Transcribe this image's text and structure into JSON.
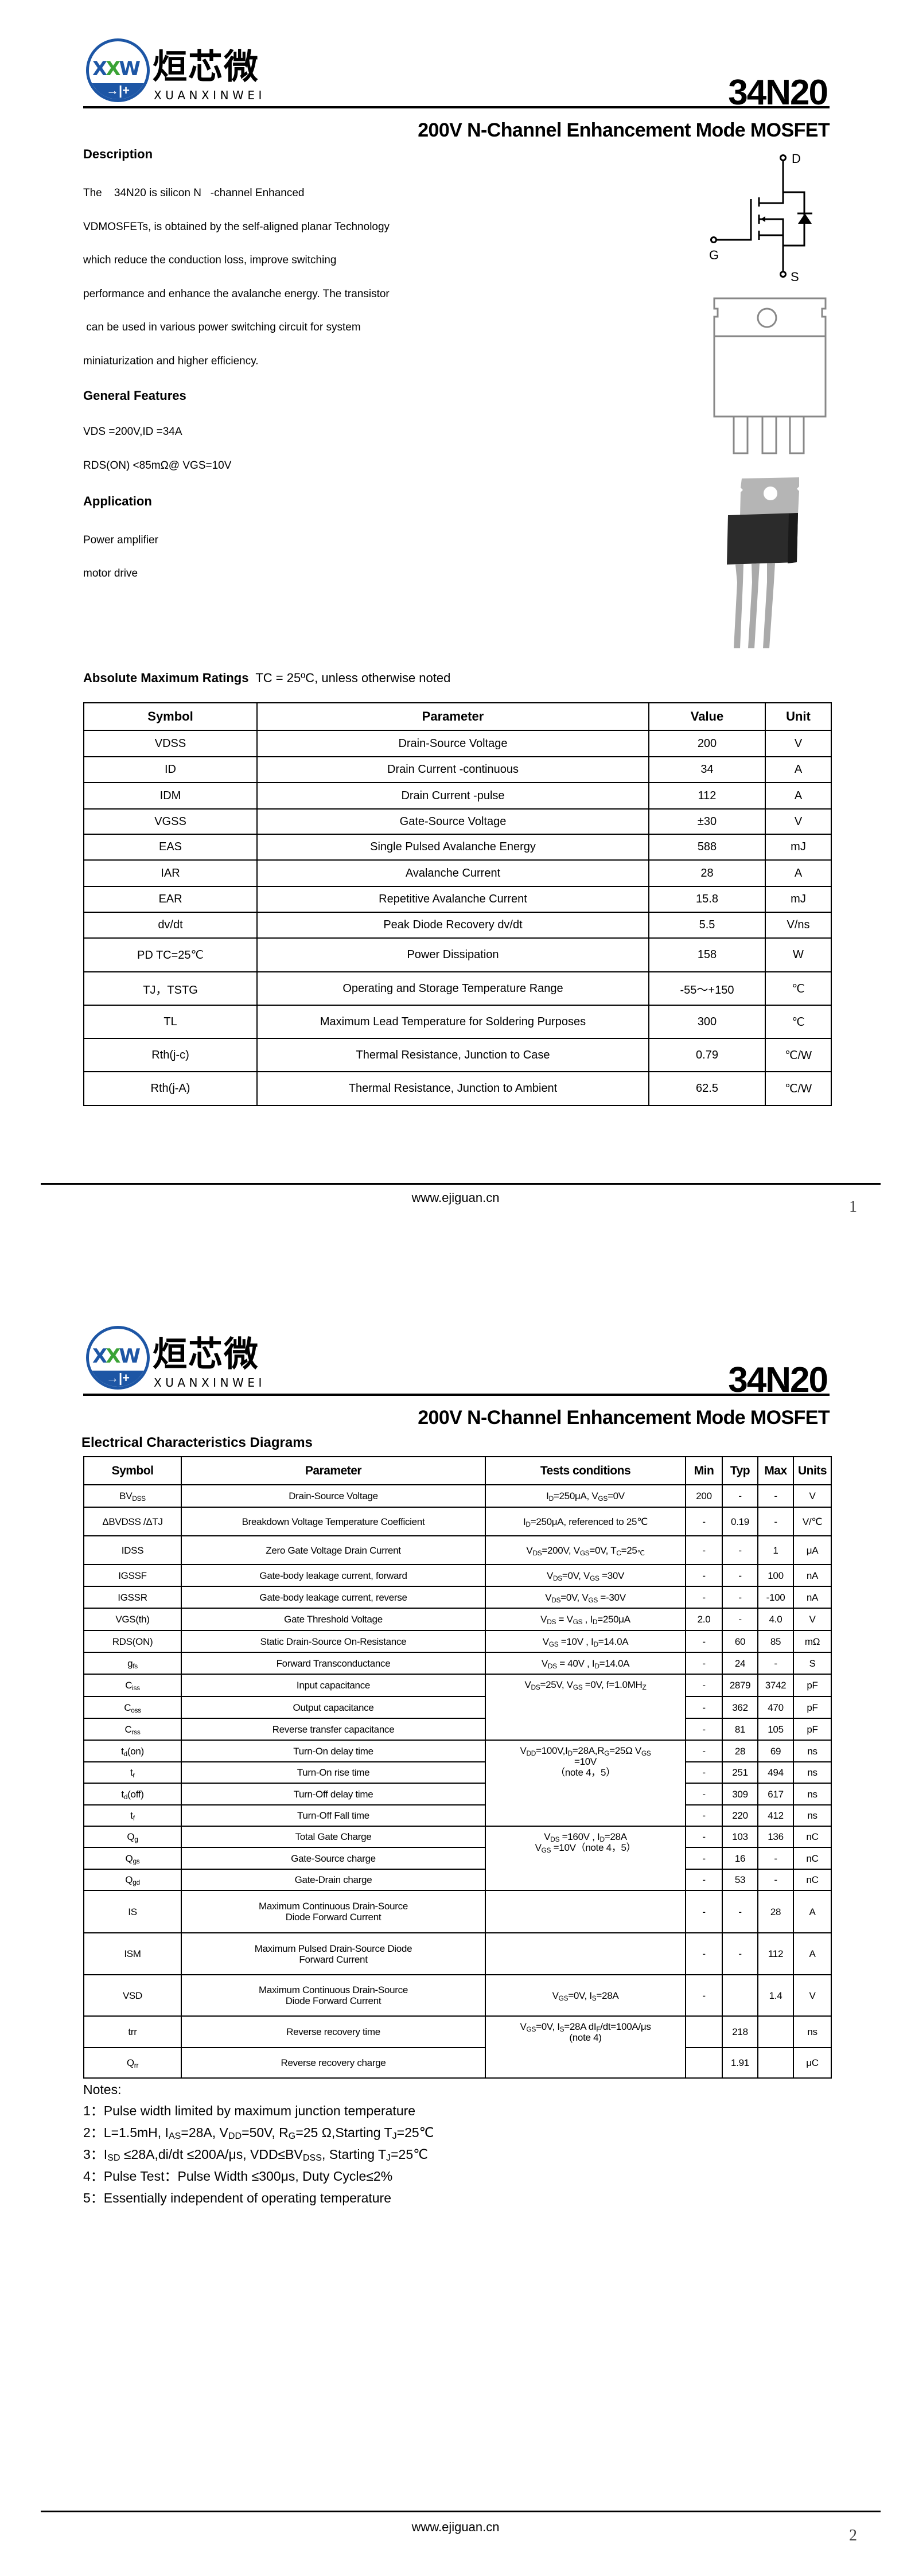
{
  "header": {
    "logo_mark": "XXW",
    "logo_cn": "烜芯微",
    "logo_en": "XUANXINWEI",
    "part_number": "34N20",
    "subtitle": "200V N-Channel Enhancement Mode MOSFET",
    "brand_color": "#1d56a5",
    "accent_color": "#3aa335"
  },
  "page1": {
    "description_heading": "Description",
    "description_lines": [
      "The    34N20 is silicon N   -channel Enhanced",
      "VDMOSFETs, is obtained by the self-aligned planar Technology",
      "which reduce the conduction loss, improve switching",
      "performance and enhance the avalanche energy. The transistor",
      " can be used in various power switching circuit for system",
      "miniaturization and higher efficiency."
    ],
    "features_heading": "General Features",
    "features": [
      "VDS =200V,ID =34A",
      "RDS(ON) <85mΩ@ VGS=10V"
    ],
    "application_heading": "Application",
    "applications": [
      "Power amplifier",
      "motor drive"
    ],
    "symbol_labels": {
      "drain": "D",
      "gate": "G",
      "source": "S"
    },
    "ratings_heading": "Absolute Maximum Ratings",
    "ratings_condition": "TC = 25ºC, unless otherwise noted",
    "ratings_columns": [
      "Symbol",
      "Parameter",
      "Value",
      "Unit"
    ],
    "ratings_rows": [
      [
        "VDSS",
        "Drain-Source Voltage",
        "200",
        "V"
      ],
      [
        "ID",
        "Drain Current -continuous",
        "34",
        "A"
      ],
      [
        "IDM",
        "Drain Current -pulse",
        "112",
        "A"
      ],
      [
        "VGSS",
        "Gate-Source Voltage",
        "±30",
        "V"
      ],
      [
        "EAS",
        "Single Pulsed Avalanche Energy",
        "588",
        "mJ"
      ],
      [
        "IAR",
        "Avalanche Current",
        "28",
        "A"
      ],
      [
        "EAR",
        "Repetitive Avalanche Current",
        "15.8",
        "mJ"
      ],
      [
        "dv/dt",
        "Peak Diode Recovery dv/dt",
        "5.5",
        "V/ns"
      ],
      [
        "PD  TC=25℃",
        "Power Dissipation",
        "158",
        "W"
      ],
      [
        "TJ，TSTG",
        "Operating and Storage Temperature Range",
        "-55～+150",
        "℃"
      ],
      [
        "TL",
        "Maximum Lead Temperature for Soldering Purposes",
        "300",
        "℃"
      ],
      [
        "Rth(j-c)",
        "Thermal Resistance, Junction to Case",
        "0.79",
        "℃/W"
      ],
      [
        "Rth(j-A)",
        "Thermal Resistance, Junction to Ambient",
        "62.5",
        "℃/W"
      ]
    ],
    "footer_url": "www.ejiguan.cn",
    "page_number": "1"
  },
  "page2": {
    "section_heading": "Electrical Characteristics Diagrams",
    "columns": [
      "Symbol",
      "Parameter",
      "Tests conditions",
      "Min",
      "Typ",
      "Max",
      "Units"
    ],
    "rows": [
      [
        [
          "BV",
          {
            "sub": "DSS"
          }
        ],
        "Drain-Source Voltage",
        [
          [
            "I",
            {
              "sub": "D"
            },
            "=250μA, V",
            {
              "sub": "GS"
            },
            "=0V"
          ]
        ],
        "200",
        "-",
        "-",
        "V"
      ],
      [
        "ΔBVDSS /ΔTJ",
        "Breakdown Voltage Temperature Coefficient",
        [
          [
            "I",
            {
              "sub": "D"
            },
            "=250μA, referenced to 25℃"
          ]
        ],
        "-",
        "0.19",
        "-",
        "V/℃"
      ],
      [
        "IDSS",
        "Zero Gate Voltage Drain Current",
        [
          [
            "V",
            {
              "sub": "DS"
            },
            "=200V, V",
            {
              "sub": "GS"
            },
            "=0V, T",
            {
              "sub": "C"
            },
            "=25",
            {
              "sub": "℃"
            }
          ]
        ],
        "-",
        "-",
        "1",
        "μA"
      ],
      [
        "IGSSF",
        "Gate-body leakage current, forward",
        [
          [
            "V",
            {
              "sub": "DS"
            },
            "=0V, V",
            {
              "sub": "GS"
            },
            " =30V"
          ]
        ],
        "-",
        "-",
        "100",
        "nA"
      ],
      [
        "IGSSR",
        "Gate-body leakage current, reverse",
        [
          [
            "V",
            {
              "sub": "DS"
            },
            "=0V, V",
            {
              "sub": "GS"
            },
            " =-30V"
          ]
        ],
        "-",
        "-",
        "-100",
        "nA"
      ],
      [
        "VGS(th)",
        "Gate Threshold Voltage",
        [
          [
            "V",
            {
              "sub": "DS"
            },
            " = V",
            {
              "sub": "GS"
            },
            " , I",
            {
              "sub": "D"
            },
            "=250μA"
          ]
        ],
        "2.0",
        "-",
        "4.0",
        "V"
      ],
      [
        "RDS(ON)",
        "Static Drain-Source On-Resistance",
        [
          [
            "V",
            {
              "sub": "GS"
            },
            " =10V , I",
            {
              "sub": "D"
            },
            "=14.0A"
          ]
        ],
        "-",
        "60",
        "85",
        "mΩ"
      ],
      [
        [
          "g",
          {
            "sub": "fs"
          }
        ],
        "Forward Transconductance",
        [
          [
            "V",
            {
              "sub": "DS"
            },
            " = 40V , I",
            {
              "sub": "D"
            },
            "=14.0A"
          ]
        ],
        "-",
        "24",
        "-",
        "S"
      ],
      [
        [
          "C",
          {
            "sub": "iss"
          }
        ],
        "Input capacitance",
        [
          [
            "V",
            {
              "sub": "DS"
            },
            "=25V, V",
            {
              "sub": "GS"
            },
            " =0V, f=1.0MH",
            {
              "sub": "Z"
            }
          ]
        ],
        "-",
        "2879",
        "3742",
        "pF"
      ],
      [
        [
          "C",
          {
            "sub": "oss"
          }
        ],
        "Output capacitance",
        null,
        "-",
        "362",
        "470",
        "pF"
      ],
      [
        [
          "C",
          {
            "sub": "rss"
          }
        ],
        "Reverse transfer capacitance",
        null,
        "-",
        "81",
        "105",
        "pF"
      ],
      [
        [
          "t",
          {
            "sub": "d"
          },
          "(on)"
        ],
        "Turn-On delay time",
        [
          [
            "V",
            {
              "sub": "DD"
            },
            "=100V,I",
            {
              "sub": "D"
            },
            "=28A,R",
            {
              "sub": "G"
            },
            "=25Ω   V",
            {
              "sub": "GS"
            }
          ],
          [
            "=10V"
          ],
          [
            "（note 4，5）"
          ]
        ],
        "-",
        "28",
        "69",
        "ns"
      ],
      [
        [
          "t",
          {
            "sub": "r"
          }
        ],
        "Turn-On rise time",
        null,
        "-",
        "251",
        "494",
        "ns"
      ],
      [
        [
          "t",
          {
            "sub": "d"
          },
          "(off)"
        ],
        "Turn-Off delay time",
        null,
        "-",
        "309",
        "617",
        "ns"
      ],
      [
        [
          "t",
          {
            "sub": "f"
          }
        ],
        "Turn-Off Fall time",
        null,
        "-",
        "220",
        "412",
        "ns"
      ],
      [
        [
          "Q",
          {
            "sub": "g"
          }
        ],
        "Total Gate Charge",
        [
          [
            "V",
            {
              "sub": "DS"
            },
            " =160V , I",
            {
              "sub": "D"
            },
            "=28A"
          ],
          [
            "V",
            {
              "sub": "GS"
            },
            " =10V（note 4，5）"
          ]
        ],
        "-",
        "103",
        "136",
        "nC"
      ],
      [
        [
          "Q",
          {
            "sub": "gs"
          }
        ],
        "Gate-Source charge",
        null,
        "-",
        "16",
        "-",
        "nC"
      ],
      [
        [
          "Q",
          {
            "sub": "gd"
          }
        ],
        "Gate-Drain charge",
        null,
        "-",
        "53",
        "-",
        "nC"
      ],
      [
        "IS",
        [
          [
            "Maximum Continuous Drain-Source"
          ],
          [
            "Diode Forward Current"
          ]
        ],
        "",
        "-",
        "-",
        "28",
        "A"
      ],
      [
        "ISM",
        [
          [
            "Maximum Pulsed Drain-Source Diode"
          ],
          [
            "Forward Current"
          ]
        ],
        "",
        "-",
        "-",
        "112",
        "A"
      ],
      [
        "VSD",
        [
          [
            "Maximum Continuous Drain-Source"
          ],
          [
            "Diode Forward Current"
          ]
        ],
        [
          [
            "V",
            {
              "sub": "GS"
            },
            "=0V, I",
            {
              "sub": "S"
            },
            "=28A"
          ]
        ],
        "-",
        "",
        "1.4",
        "V"
      ],
      [
        "trr",
        "Reverse recovery time",
        [
          [
            "V",
            {
              "sub": "GS"
            },
            "=0V, I",
            {
              "sub": "S"
            },
            "=28A dI",
            {
              "sub": "F"
            },
            "/dt=100A/μs"
          ],
          [
            "(note 4)"
          ]
        ],
        "",
        "218",
        "",
        "ns"
      ],
      [
        [
          "Q",
          {
            "sub": "rr"
          }
        ],
        "Reverse recovery charge",
        null,
        "",
        "1.91",
        "",
        "μC"
      ]
    ],
    "notes_heading": "Notes:",
    "notes": [
      [
        "1：Pulse width limited by maximum junction temperature"
      ],
      [
        "2：L=1.5mH, I",
        {
          "sub": "AS"
        },
        "=28A, V",
        {
          "sub": "DD"
        },
        "=50V, R",
        {
          "sub": "G"
        },
        "=25 Ω,Starting T",
        {
          "sub": "J"
        },
        "=25℃"
      ],
      [
        "3：I",
        {
          "sub": "SD"
        },
        " ≤28A,di/dt ≤200A/μs, VDD≤BV",
        {
          "sub": "DSS"
        },
        ", Starting T",
        {
          "sub": "J"
        },
        "=25℃"
      ],
      [
        "4：Pulse Test：Pulse Width ≤300μs, Duty Cycle≤2%"
      ],
      [
        "5：Essentially independent of operating temperature"
      ]
    ],
    "footer_url": "www.ejiguan.cn",
    "page_number": "2"
  }
}
